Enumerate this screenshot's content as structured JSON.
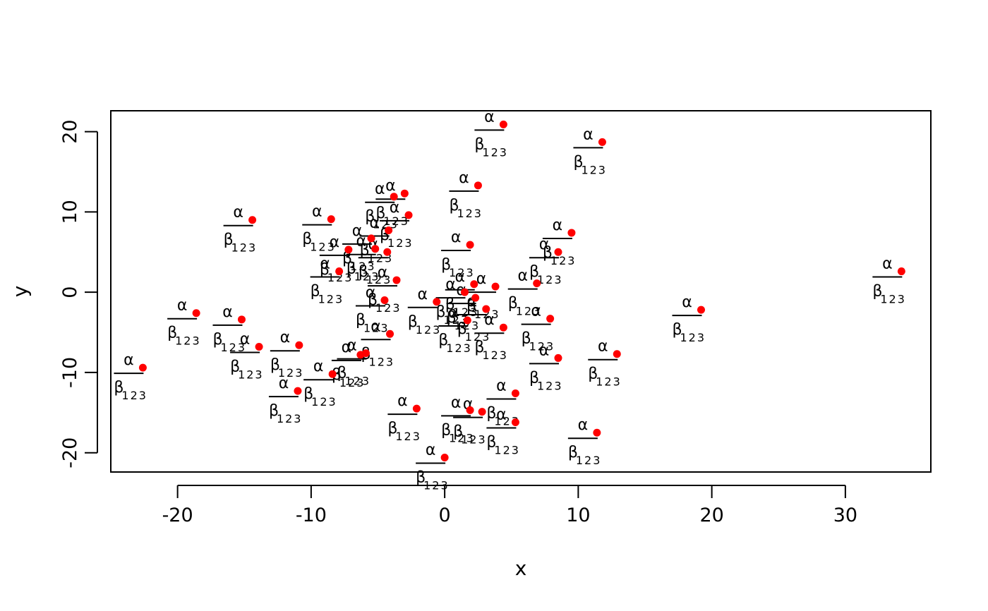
{
  "chart_data": {
    "type": "scatter",
    "title": "",
    "xlabel": "x",
    "ylabel": "y",
    "xlim": [
      -25,
      36.4
    ],
    "ylim": [
      -22.4,
      22.6
    ],
    "xticks": [
      -20,
      -10,
      0,
      10,
      20,
      30
    ],
    "yticks": [
      -20,
      -10,
      0,
      10,
      20
    ],
    "x_tick_labels": [
      "-20",
      "-10",
      "0",
      "10",
      "20",
      "30"
    ],
    "y_tick_labels": [
      "-20",
      "-10",
      "0",
      "10",
      "20"
    ],
    "grid": false,
    "point_color": "#ff0000",
    "annotation": {
      "numerator": "α",
      "denominator": "β",
      "subscript": "123",
      "position": "left"
    },
    "points": [
      {
        "x": 4.4,
        "y": 20.9
      },
      {
        "x": 11.8,
        "y": 18.7
      },
      {
        "x": 2.5,
        "y": 13.3
      },
      {
        "x": -3.0,
        "y": 12.3
      },
      {
        "x": -3.8,
        "y": 11.9
      },
      {
        "x": -2.7,
        "y": 9.6
      },
      {
        "x": -14.4,
        "y": 9.0
      },
      {
        "x": -8.5,
        "y": 9.1
      },
      {
        "x": -4.2,
        "y": 7.7
      },
      {
        "x": 9.5,
        "y": 7.4
      },
      {
        "x": -5.5,
        "y": 6.7
      },
      {
        "x": 1.9,
        "y": 5.9
      },
      {
        "x": -7.2,
        "y": 5.3
      },
      {
        "x": -5.2,
        "y": 5.4
      },
      {
        "x": -4.3,
        "y": 5.0
      },
      {
        "x": 8.5,
        "y": 5.0
      },
      {
        "x": -7.9,
        "y": 2.6
      },
      {
        "x": -3.6,
        "y": 1.5
      },
      {
        "x": 6.9,
        "y": 1.1
      },
      {
        "x": 2.2,
        "y": 1.0
      },
      {
        "x": 3.8,
        "y": 0.7
      },
      {
        "x": 1.5,
        "y": 0.0
      },
      {
        "x": 2.3,
        "y": -0.7
      },
      {
        "x": -4.5,
        "y": -1.0
      },
      {
        "x": -0.6,
        "y": -1.2
      },
      {
        "x": 3.1,
        "y": -2.1
      },
      {
        "x": 19.2,
        "y": -2.2
      },
      {
        "x": -18.6,
        "y": -2.6
      },
      {
        "x": 7.9,
        "y": -3.3
      },
      {
        "x": -15.2,
        "y": -3.4
      },
      {
        "x": 1.7,
        "y": -3.5
      },
      {
        "x": 4.4,
        "y": -4.4
      },
      {
        "x": -4.1,
        "y": -5.2
      },
      {
        "x": 34.2,
        "y": 2.6
      },
      {
        "x": -10.9,
        "y": -6.6
      },
      {
        "x": -13.9,
        "y": -6.8
      },
      {
        "x": -5.9,
        "y": -7.6
      },
      {
        "x": -6.3,
        "y": -7.8
      },
      {
        "x": 12.9,
        "y": -7.7
      },
      {
        "x": 8.5,
        "y": -8.2
      },
      {
        "x": -22.6,
        "y": -9.4
      },
      {
        "x": -8.4,
        "y": -10.2
      },
      {
        "x": -11.0,
        "y": -12.3
      },
      {
        "x": 5.3,
        "y": -12.6
      },
      {
        "x": -2.1,
        "y": -14.5
      },
      {
        "x": 1.9,
        "y": -14.7
      },
      {
        "x": 2.8,
        "y": -14.9
      },
      {
        "x": 5.3,
        "y": -16.2
      },
      {
        "x": 11.4,
        "y": -17.5
      },
      {
        "x": 0.0,
        "y": -20.6
      }
    ]
  }
}
